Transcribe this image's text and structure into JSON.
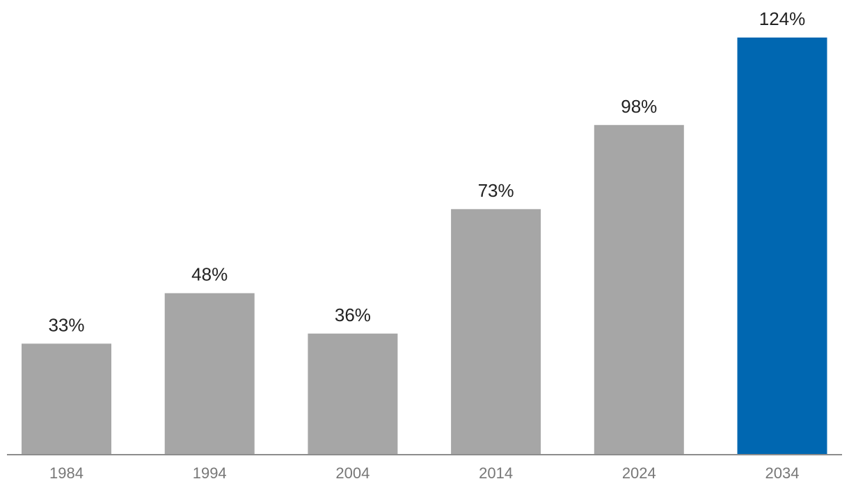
{
  "chart_data": {
    "type": "bar",
    "title": "",
    "xlabel": "",
    "ylabel": "",
    "categories": [
      "1984",
      "1994",
      "2004",
      "2014",
      "2024",
      "2034"
    ],
    "values": [
      33,
      48,
      36,
      73,
      98,
      124
    ],
    "value_labels": [
      "33%",
      "48%",
      "36%",
      "73%",
      "98%",
      "124%"
    ],
    "ylim": [
      0,
      124
    ],
    "grid": false,
    "legend": "none",
    "colors": {
      "default_bar": "#a6a6a6",
      "highlight_bar": "#0067b1",
      "axis": "#8c8c8c",
      "value_text": "#222222",
      "tick_text": "#777777"
    },
    "highlight_index": 5
  }
}
